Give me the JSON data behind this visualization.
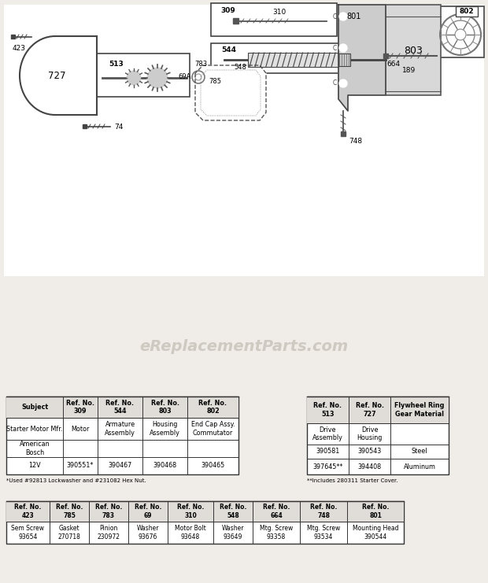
{
  "bg_color": "#f0ede8",
  "watermark": "eReplacementParts.com",
  "table1_left": {
    "headers": [
      "Subject",
      "Ref. No.\n309",
      "Ref. No.\n544",
      "Ref. No.\n803",
      "Ref. No.\n802"
    ],
    "rows": [
      [
        "Starter Motor Mfr.",
        "Motor",
        "Armature\nAssembly",
        "Housing\nAssembly",
        "End Cap Assy.\nCommutator"
      ],
      [
        "American\nBosch",
        "",
        "",
        "",
        ""
      ],
      [
        "12V",
        "390551*",
        "390467",
        "390468",
        "390465"
      ]
    ],
    "footnote": "*Used #92813 Lockwasher and #231082 Hex Nut."
  },
  "table1_right": {
    "headers": [
      "Ref. No.\n513",
      "Ref. No.\n727",
      "Flywheel Ring\nGear Material"
    ],
    "rows": [
      [
        "Drive\nAssembly",
        "Drive\nHousing",
        ""
      ],
      [
        "390581",
        "390543",
        "Steel"
      ],
      [
        "397645**",
        "394408",
        "Aluminum"
      ]
    ],
    "footnote": "**Includes 280311 Starter Cover."
  },
  "table2": {
    "headers": [
      "Ref. No.\n423",
      "Ref. No.\n785",
      "Ref. No.\n783",
      "Ref. No.\n69",
      "Ref. No.\n310",
      "Ref. No.\n548",
      "Ref. No.\n664",
      "Ref. No.\n748",
      "Ref. No.\n801"
    ],
    "rows": [
      [
        "Sem Screw\n93654",
        "Gasket\n270718",
        "Pinion\n230972",
        "Washer\n93676",
        "Motor Bolt\n93648",
        "Washer\n93649",
        "Mtg. Screw\n93358",
        "Mtg. Screw\n93534",
        "Mounting Head\n390544"
      ]
    ]
  }
}
